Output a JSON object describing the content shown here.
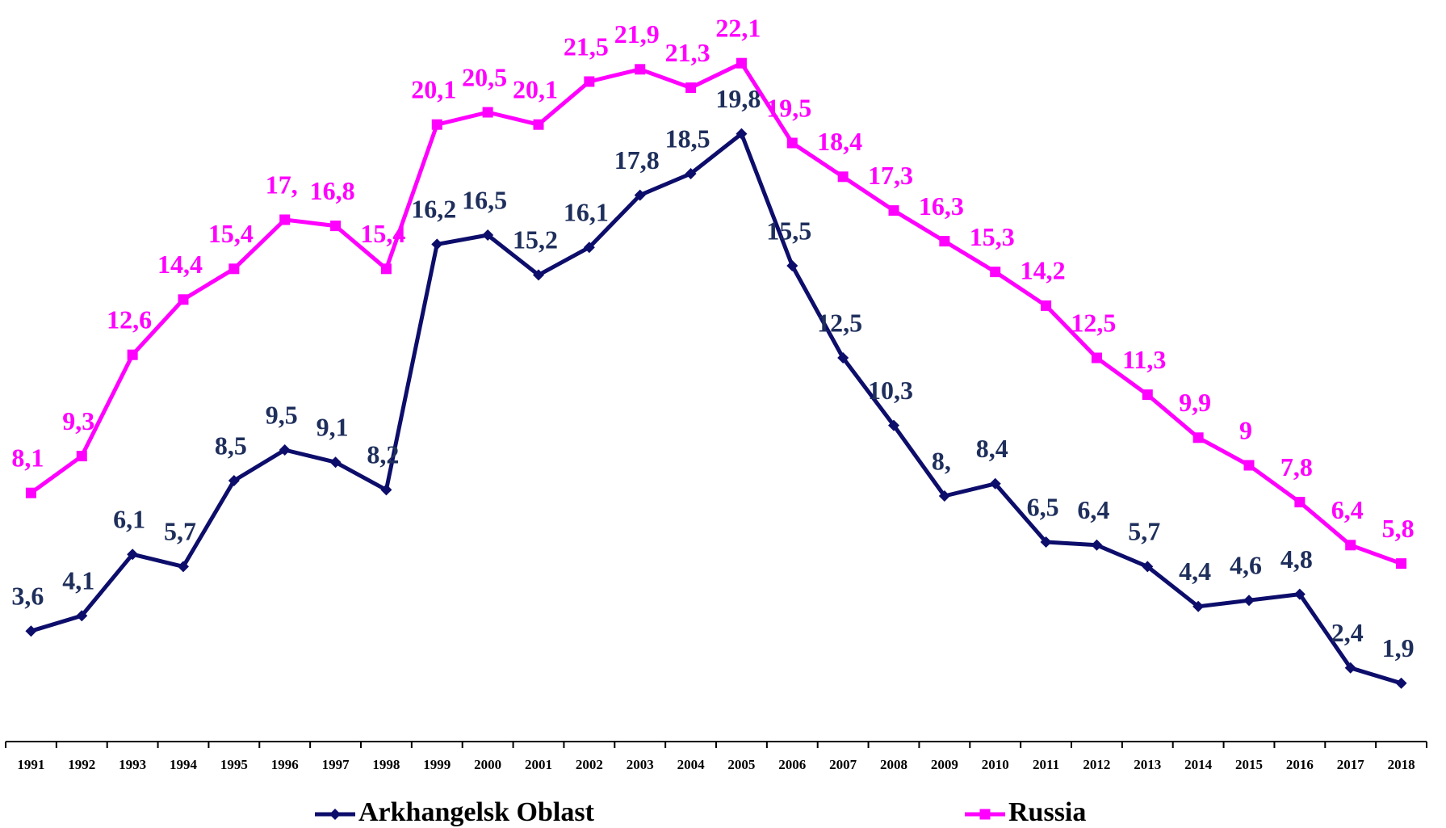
{
  "chart_data": {
    "type": "line",
    "categories": [
      "1991",
      "1992",
      "1993",
      "1994",
      "1995",
      "1996",
      "1997",
      "1998",
      "1999",
      "2000",
      "2001",
      "2002",
      "2003",
      "2004",
      "2005",
      "2006",
      "2007",
      "2008",
      "2009",
      "2010",
      "2011",
      "2012",
      "2013",
      "2014",
      "2015",
      "2016",
      "2017",
      "2018"
    ],
    "series": [
      {
        "name": "Arkhangelsk Oblast",
        "color": "#0d0d6b",
        "marker": "diamond",
        "values": [
          3.6,
          4.1,
          6.1,
          5.7,
          8.5,
          9.5,
          9.1,
          8.2,
          16.2,
          16.5,
          15.2,
          16.1,
          17.8,
          18.5,
          19.8,
          15.5,
          12.5,
          10.3,
          8,
          8.4,
          6.5,
          6.4,
          5.7,
          4.4,
          4.6,
          4.8,
          2.4,
          1.9
        ],
        "value_labels": [
          "3,6",
          "4,1",
          "6,1",
          "5,7",
          "8,5",
          "9,5",
          "9,1",
          "8,2",
          "16,2",
          "16,5",
          "15,2",
          "16,1",
          "17,8",
          "18,5",
          "19,8",
          "15,5",
          "12,5",
          "10,3",
          "8,",
          "8,4",
          "6,5",
          "6,4",
          "5,7",
          "4,4",
          "4,6",
          "4,8",
          "2,4",
          "1,9"
        ]
      },
      {
        "name": "Russia",
        "color": "#ff00ff",
        "marker": "square",
        "values": [
          8.1,
          9.3,
          12.6,
          14.4,
          15.4,
          17,
          16.8,
          15.4,
          20.1,
          20.5,
          20.1,
          21.5,
          21.9,
          21.3,
          22.1,
          19.5,
          18.4,
          17.3,
          16.3,
          15.3,
          14.2,
          12.5,
          11.3,
          9.9,
          9,
          7.8,
          6.4,
          5.8
        ],
        "value_labels": [
          "8,1",
          "9,3",
          "12,6",
          "14,4",
          "15,4",
          "17,",
          "16,8",
          "15,4",
          "20,1",
          "20,5",
          "20,1",
          "21,5",
          "21,9",
          "21,3",
          "22,1",
          "19,5",
          "18,4",
          "17,3",
          "16,3",
          "15,3",
          "14,2",
          "12,5",
          "11,3",
          "9,9",
          "9",
          "7,8",
          "6,4",
          "5,8"
        ]
      }
    ],
    "ylim": [
      0,
      24
    ],
    "grid": false
  }
}
